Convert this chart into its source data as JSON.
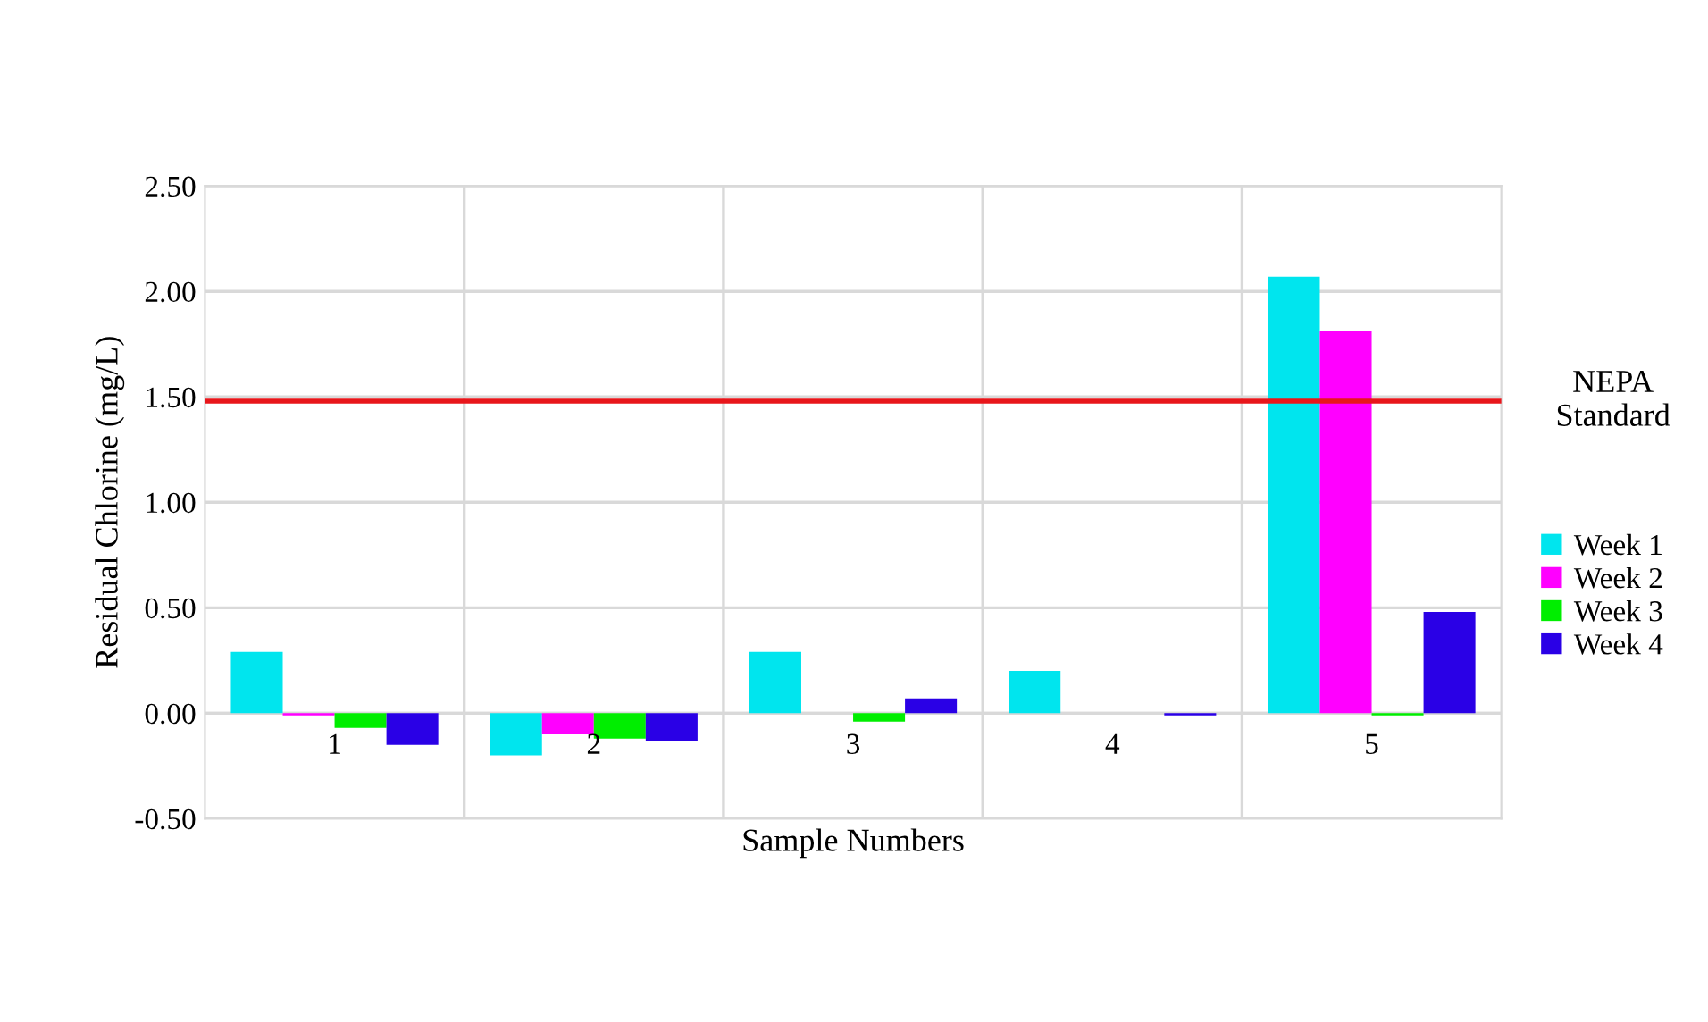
{
  "chart_data": {
    "type": "bar",
    "xlabel": "Sample Numbers",
    "ylabel": "Residual Chlorine (mg/L)",
    "categories": [
      "1",
      "2",
      "3",
      "4",
      "5"
    ],
    "series": [
      {
        "name": "Week 1",
        "color": "#00e5ee",
        "values": [
          0.29,
          -0.2,
          0.29,
          0.2,
          2.07
        ]
      },
      {
        "name": "Week 2",
        "color": "#ff00ff",
        "values": [
          -0.01,
          -0.1,
          0,
          0,
          1.81
        ]
      },
      {
        "name": "Week 3",
        "color": "#00ee00",
        "values": [
          -0.07,
          -0.12,
          -0.04,
          0,
          -0.01
        ]
      },
      {
        "name": "Week 4",
        "color": "#2a00e6",
        "values": [
          -0.15,
          -0.13,
          0.07,
          -0.01,
          0.48
        ]
      }
    ],
    "ylim": [
      -0.5,
      2.5
    ],
    "yticks": [
      {
        "value": -0.5,
        "label": "-0.50"
      },
      {
        "value": 0,
        "label": "0.00"
      },
      {
        "value": 0.5,
        "label": "0.50"
      },
      {
        "value": 1,
        "label": "1.00"
      },
      {
        "value": 1.5,
        "label": "1.50"
      },
      {
        "value": 2,
        "label": "2.00"
      },
      {
        "value": 2.5,
        "label": "2.50"
      }
    ],
    "ref_lines": [
      {
        "axis": "y",
        "value": 1.48,
        "label": "NEPA\nStandard",
        "color": "#e8161b"
      }
    ],
    "grid": true,
    "legend": "right"
  }
}
